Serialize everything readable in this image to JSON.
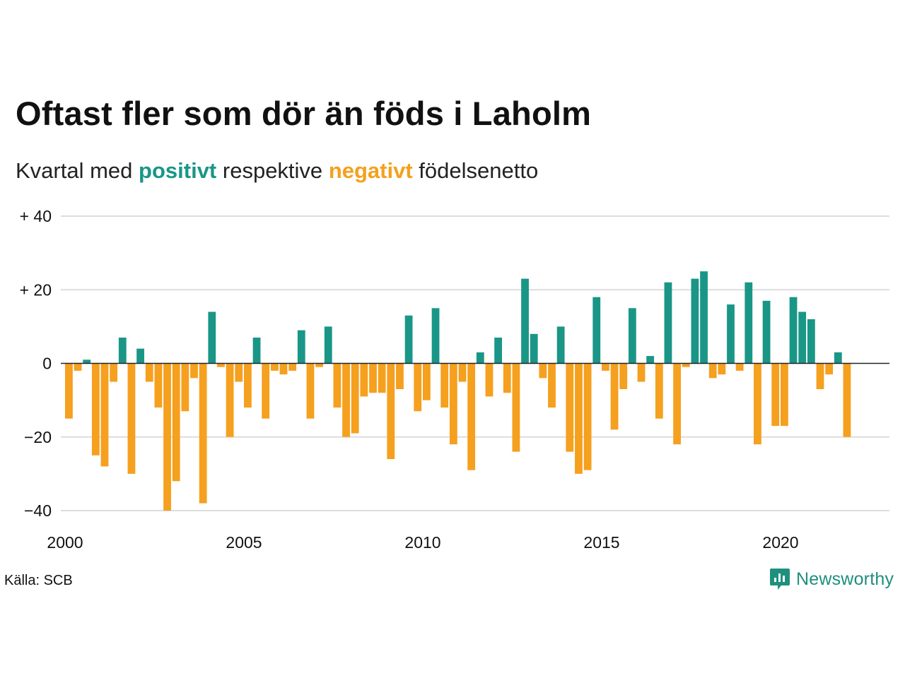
{
  "title": "Oftast fler som dör än föds i Laholm",
  "subtitle": {
    "prefix": "Kvartal med",
    "positive_word": "positivt",
    "middle": "respektive",
    "negative_word": "negativt",
    "suffix": "födelsenetto"
  },
  "colors": {
    "positive": "#1a9687",
    "negative": "#f5a01e",
    "grid": "#dddddd",
    "zero_line": "#222222",
    "positive_text": "#1a9687",
    "negative_text": "#f5a01e"
  },
  "source": "Källa: SCB",
  "brand": {
    "name": "Newsworthy",
    "icon": "newsworthy-logo-icon"
  },
  "chart_data": {
    "type": "bar",
    "xlabel": "",
    "ylabel": "",
    "ylim": [
      -40,
      40
    ],
    "yticks": [
      {
        "value": 40,
        "label": "+ 40"
      },
      {
        "value": 20,
        "label": "+ 20"
      },
      {
        "value": 0,
        "label": "0"
      },
      {
        "value": -20,
        "label": "−20"
      },
      {
        "value": -40,
        "label": "−40"
      }
    ],
    "xticks": [
      "2000",
      "2005",
      "2010",
      "2015",
      "2020"
    ],
    "start_year": 2000,
    "quarters_per_year": 4,
    "grid": true,
    "values": [
      -15,
      -2,
      1,
      -25,
      -28,
      -5,
      7,
      -30,
      4,
      -5,
      -12,
      -40,
      -32,
      -13,
      -4,
      -38,
      14,
      -1,
      -20,
      -5,
      -12,
      7,
      -15,
      -2,
      -3,
      -2,
      9,
      -15,
      -1,
      10,
      -12,
      -20,
      -19,
      -9,
      -8,
      -8,
      -26,
      -7,
      13,
      -13,
      -10,
      15,
      -12,
      -22,
      -5,
      -29,
      3,
      -9,
      7,
      -8,
      -24,
      23,
      8,
      -4,
      -12,
      10,
      -24,
      -30,
      -29,
      18,
      -2,
      -18,
      -7,
      15,
      -5,
      2,
      -15,
      22,
      -22,
      -1,
      23,
      25,
      -4,
      -3,
      16,
      -2,
      22,
      -22,
      17,
      -17,
      -17,
      18,
      14,
      12,
      -7,
      -3,
      3,
      -20
    ]
  }
}
